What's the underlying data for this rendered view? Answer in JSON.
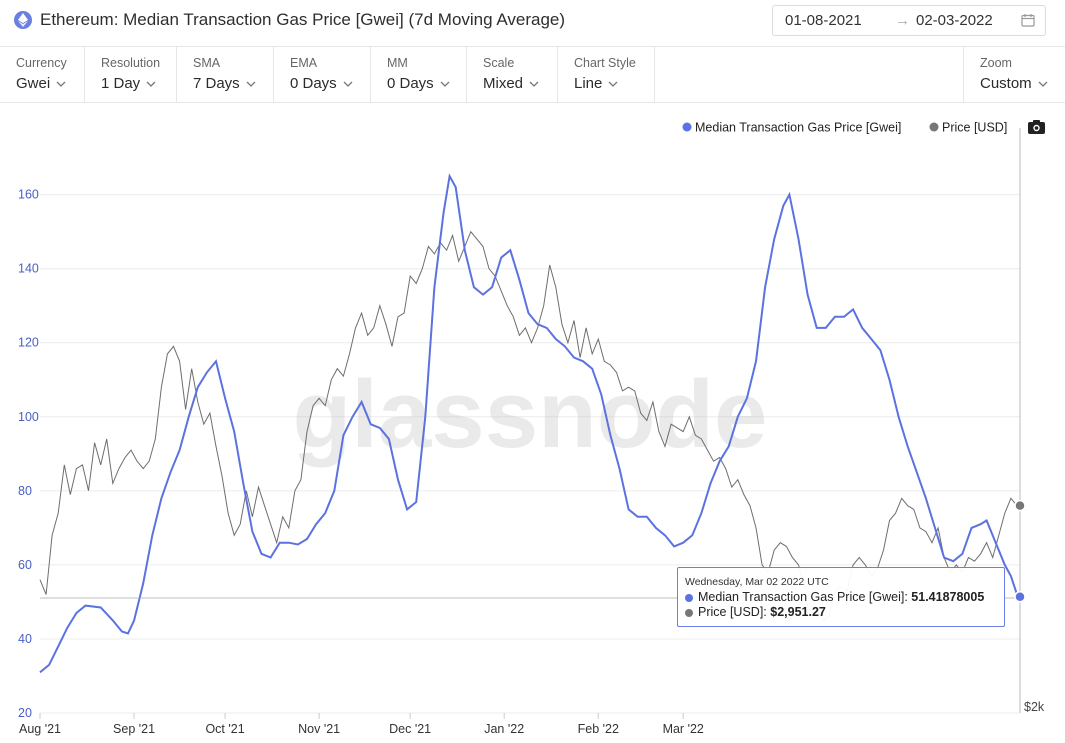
{
  "header": {
    "title": "Ethereum: Median Transaction Gas Price [Gwei] (7d Moving Average)",
    "date_from": "01-08-2021",
    "date_arrow": "→",
    "date_to": "02-03-2022"
  },
  "controls": [
    {
      "label": "Currency",
      "value": "Gwei"
    },
    {
      "label": "Resolution",
      "value": "1 Day"
    },
    {
      "label": "SMA",
      "value": "7 Days"
    },
    {
      "label": "EMA",
      "value": "0 Days"
    },
    {
      "label": "MM",
      "value": "0 Days"
    },
    {
      "label": "Scale",
      "value": "Mixed"
    },
    {
      "label": "Chart Style",
      "value": "Line"
    }
  ],
  "zoom": {
    "label": "Zoom",
    "value": "Custom"
  },
  "watermark": "glassnode",
  "tooltip": {
    "date": "Wednesday, Mar 02 2022 UTC",
    "series1_label": "Median Transaction Gas Price [Gwei]:",
    "series1_value": "51.41878005",
    "series2_label": "Price [USD]:",
    "series2_value": "$2,951.27"
  },
  "right_axis_label": "$2k",
  "colors": {
    "gas": "#5b72e0",
    "price": "#6e6e6e",
    "accent": "#6b7fe3"
  },
  "icons": [
    "ethereum-icon",
    "calendar-icon",
    "chevron-down-icon",
    "camera-icon"
  ],
  "chart_data": {
    "type": "line",
    "legend": [
      "Median Transaction Gas Price [Gwei]",
      "Price [USD]"
    ],
    "legend_position": "top-right",
    "x_tick_labels": [
      "Aug '21",
      "Sep '21",
      "Oct '21",
      "Nov '21",
      "Dec '21",
      "Jan '22",
      "Feb '22",
      "Mar '22"
    ],
    "y_tick_labels": [
      "20",
      "40",
      "60",
      "80",
      "100",
      "120",
      "140",
      "160"
    ],
    "ylim": [
      20,
      178
    ],
    "grid": true,
    "series": [
      {
        "name": "Median Transaction Gas Price [Gwei]",
        "axis": "left",
        "x_unit": "day of period starting Aug 1 2021",
        "points": [
          [
            0,
            31
          ],
          [
            3,
            33
          ],
          [
            6,
            38
          ],
          [
            9,
            43
          ],
          [
            12,
            47
          ],
          [
            15,
            49
          ],
          [
            20,
            48.5
          ],
          [
            24,
            45
          ],
          [
            27,
            42
          ],
          [
            29,
            41.5
          ],
          [
            31,
            45
          ],
          [
            34,
            55
          ],
          [
            37,
            68
          ],
          [
            40,
            78
          ],
          [
            43,
            85
          ],
          [
            46,
            91
          ],
          [
            49,
            100
          ],
          [
            52,
            108
          ],
          [
            55,
            112
          ],
          [
            58,
            115
          ],
          [
            61,
            105
          ],
          [
            64,
            96
          ],
          [
            67,
            82
          ],
          [
            70,
            69
          ],
          [
            73,
            63
          ],
          [
            76,
            62
          ],
          [
            79,
            66
          ],
          [
            82,
            66
          ],
          [
            85,
            65.5
          ],
          [
            88,
            67
          ],
          [
            91,
            71
          ],
          [
            94,
            74
          ],
          [
            97,
            80
          ],
          [
            100,
            95
          ],
          [
            103,
            100
          ],
          [
            106,
            104
          ],
          [
            109,
            98
          ],
          [
            112,
            97
          ],
          [
            115,
            94
          ],
          [
            118,
            83
          ],
          [
            121,
            75
          ],
          [
            124,
            77
          ],
          [
            127,
            100
          ],
          [
            130,
            135
          ],
          [
            133,
            155
          ],
          [
            135,
            165
          ],
          [
            137,
            162
          ],
          [
            140,
            145
          ],
          [
            143,
            135
          ],
          [
            146,
            133
          ],
          [
            149,
            135
          ],
          [
            152,
            143
          ],
          [
            155,
            145
          ],
          [
            158,
            137
          ],
          [
            161,
            128
          ],
          [
            164,
            125
          ],
          [
            167,
            124
          ],
          [
            170,
            121
          ],
          [
            173,
            119
          ],
          [
            176,
            116
          ],
          [
            179,
            115
          ],
          [
            182,
            113
          ],
          [
            185,
            106
          ],
          [
            188,
            95
          ],
          [
            191,
            86
          ],
          [
            194,
            75
          ],
          [
            197,
            73
          ],
          [
            200,
            73
          ],
          [
            203,
            70
          ],
          [
            206,
            68
          ],
          [
            209,
            65
          ],
          [
            212,
            66
          ],
          [
            215,
            68
          ],
          [
            218,
            74
          ],
          [
            221,
            82
          ],
          [
            224,
            88
          ],
          [
            227,
            92
          ],
          [
            230,
            100
          ],
          [
            233,
            105
          ],
          [
            236,
            115
          ],
          [
            239,
            135
          ],
          [
            242,
            148
          ],
          [
            245,
            157
          ],
          [
            247,
            160
          ],
          [
            250,
            148
          ],
          [
            253,
            133
          ],
          [
            256,
            124
          ],
          [
            259,
            124
          ],
          [
            262,
            127
          ],
          [
            265,
            127
          ],
          [
            268,
            129
          ],
          [
            271,
            124
          ],
          [
            274,
            121
          ],
          [
            277,
            118
          ],
          [
            280,
            110
          ],
          [
            283,
            100
          ],
          [
            286,
            92
          ],
          [
            289,
            85
          ],
          [
            292,
            78
          ],
          [
            295,
            70
          ],
          [
            298,
            62
          ],
          [
            301,
            61
          ],
          [
            304,
            63
          ],
          [
            307,
            70
          ],
          [
            310,
            71
          ],
          [
            312,
            72
          ],
          [
            315,
            66
          ],
          [
            318,
            60
          ],
          [
            320,
            57
          ],
          [
            322,
            52
          ],
          [
            323,
            51.4
          ]
        ]
      },
      {
        "name": "Price [USD]",
        "axis": "right",
        "x_unit": "day of period starting Aug 1 2021",
        "points": [
          [
            0,
            56
          ],
          [
            2,
            52
          ],
          [
            4,
            68
          ],
          [
            6,
            74
          ],
          [
            8,
            87
          ],
          [
            10,
            79
          ],
          [
            12,
            86
          ],
          [
            14,
            87
          ],
          [
            16,
            80
          ],
          [
            18,
            93
          ],
          [
            20,
            87
          ],
          [
            22,
            94
          ],
          [
            24,
            82
          ],
          [
            26,
            86
          ],
          [
            28,
            89
          ],
          [
            30,
            91
          ],
          [
            32,
            88
          ],
          [
            34,
            86
          ],
          [
            36,
            88
          ],
          [
            38,
            94
          ],
          [
            40,
            108
          ],
          [
            42,
            117
          ],
          [
            44,
            119
          ],
          [
            46,
            115
          ],
          [
            48,
            102
          ],
          [
            50,
            113
          ],
          [
            52,
            104
          ],
          [
            54,
            98
          ],
          [
            56,
            101
          ],
          [
            58,
            92
          ],
          [
            60,
            84
          ],
          [
            62,
            74
          ],
          [
            64,
            68
          ],
          [
            66,
            71
          ],
          [
            68,
            80
          ],
          [
            70,
            73
          ],
          [
            72,
            81
          ],
          [
            74,
            76
          ],
          [
            76,
            71
          ],
          [
            78,
            66
          ],
          [
            80,
            73
          ],
          [
            82,
            70
          ],
          [
            84,
            80
          ],
          [
            86,
            83
          ],
          [
            88,
            96
          ],
          [
            90,
            103
          ],
          [
            92,
            105
          ],
          [
            94,
            103
          ],
          [
            96,
            110
          ],
          [
            98,
            113
          ],
          [
            100,
            111
          ],
          [
            102,
            117
          ],
          [
            104,
            124
          ],
          [
            106,
            128
          ],
          [
            108,
            122
          ],
          [
            110,
            124
          ],
          [
            112,
            130
          ],
          [
            114,
            125
          ],
          [
            116,
            119
          ],
          [
            118,
            127
          ],
          [
            120,
            128
          ],
          [
            122,
            138
          ],
          [
            124,
            136
          ],
          [
            126,
            140
          ],
          [
            128,
            146
          ],
          [
            130,
            144
          ],
          [
            132,
            147
          ],
          [
            134,
            145
          ],
          [
            136,
            149
          ],
          [
            138,
            142
          ],
          [
            140,
            146
          ],
          [
            142,
            150
          ],
          [
            144,
            148
          ],
          [
            146,
            146
          ],
          [
            148,
            140
          ],
          [
            150,
            138
          ],
          [
            152,
            134
          ],
          [
            154,
            130
          ],
          [
            156,
            127
          ],
          [
            158,
            122
          ],
          [
            160,
            124
          ],
          [
            162,
            120
          ],
          [
            164,
            124
          ],
          [
            166,
            130
          ],
          [
            168,
            141
          ],
          [
            170,
            135
          ],
          [
            172,
            125
          ],
          [
            174,
            120
          ],
          [
            176,
            126
          ],
          [
            178,
            116
          ],
          [
            180,
            124
          ],
          [
            182,
            117
          ],
          [
            184,
            121
          ],
          [
            186,
            115
          ],
          [
            188,
            114
          ],
          [
            190,
            112
          ],
          [
            192,
            107
          ],
          [
            194,
            108
          ],
          [
            196,
            107
          ],
          [
            198,
            101
          ],
          [
            200,
            99
          ],
          [
            202,
            104
          ],
          [
            204,
            96
          ],
          [
            206,
            92
          ],
          [
            208,
            98
          ],
          [
            210,
            97
          ],
          [
            212,
            96
          ],
          [
            214,
            100
          ],
          [
            216,
            95
          ],
          [
            218,
            94
          ],
          [
            220,
            91
          ],
          [
            222,
            88
          ],
          [
            224,
            89
          ],
          [
            226,
            86
          ],
          [
            228,
            81
          ],
          [
            230,
            83
          ],
          [
            232,
            79
          ],
          [
            234,
            76
          ],
          [
            236,
            70
          ],
          [
            238,
            60
          ],
          [
            240,
            58
          ],
          [
            242,
            64
          ],
          [
            244,
            66
          ],
          [
            246,
            65
          ],
          [
            248,
            62
          ],
          [
            250,
            60
          ],
          [
            252,
            54
          ],
          [
            254,
            52
          ],
          [
            256,
            48
          ],
          [
            258,
            45
          ],
          [
            260,
            46
          ],
          [
            262,
            53
          ],
          [
            264,
            54
          ],
          [
            266,
            53
          ],
          [
            268,
            60
          ],
          [
            270,
            62
          ],
          [
            272,
            60
          ],
          [
            274,
            57
          ],
          [
            276,
            59
          ],
          [
            278,
            64
          ],
          [
            280,
            72
          ],
          [
            282,
            74
          ],
          [
            284,
            78
          ],
          [
            286,
            76
          ],
          [
            288,
            75
          ],
          [
            290,
            70
          ],
          [
            292,
            69
          ],
          [
            294,
            66
          ],
          [
            296,
            70
          ],
          [
            298,
            62
          ],
          [
            300,
            58
          ],
          [
            302,
            60
          ],
          [
            304,
            58
          ],
          [
            306,
            62
          ],
          [
            308,
            61
          ],
          [
            310,
            63
          ],
          [
            312,
            66
          ],
          [
            314,
            62
          ],
          [
            316,
            68
          ],
          [
            318,
            74
          ],
          [
            320,
            78
          ],
          [
            322,
            76
          ],
          [
            323,
            76
          ]
        ]
      }
    ]
  }
}
